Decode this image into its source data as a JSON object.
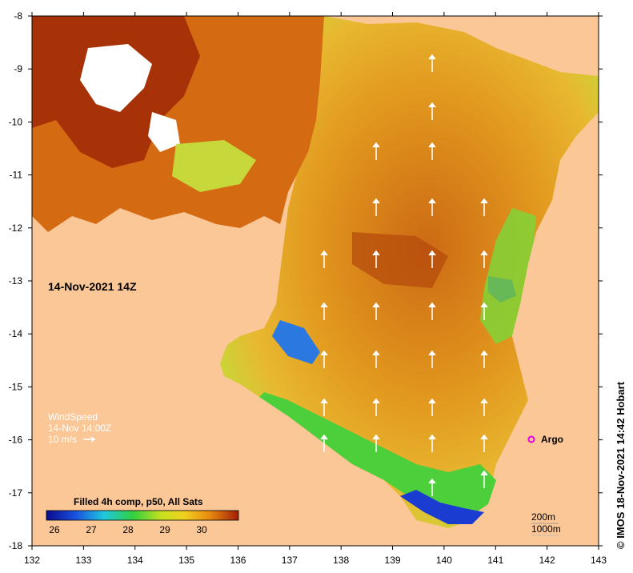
{
  "map": {
    "date_label": "14-Nov-2021 14Z",
    "lon_ticks": [
      "132",
      "133",
      "134",
      "135",
      "136",
      "137",
      "138",
      "139",
      "140",
      "141",
      "142",
      "143"
    ],
    "lat_ticks": [
      "-8",
      "-9",
      "-10",
      "-11",
      "-12",
      "-13",
      "-14",
      "-15",
      "-16",
      "-17",
      "-18"
    ]
  },
  "wind_legend": {
    "title": "WindSpeed",
    "time": "14-Nov 14:00Z",
    "scale": "10 m/s"
  },
  "argo": {
    "label": "Argo",
    "color": "#e000e0"
  },
  "colorbar": {
    "title": "Filled 4h comp, p50, All Sats",
    "ticks": [
      "26",
      "27",
      "28",
      "29",
      "30"
    ]
  },
  "depth_legend": {
    "contour1": "200m",
    "contour2": "1000m"
  },
  "credit": "© IMOS 18-Nov-2021 14:42 Hobart",
  "colors": {
    "land": "#fbc797",
    "sst_warm": "#e69a2a",
    "sst_hot": "#a83208",
    "sst_cool": "#5ad23c",
    "sst_cold": "#1a3cd0"
  }
}
